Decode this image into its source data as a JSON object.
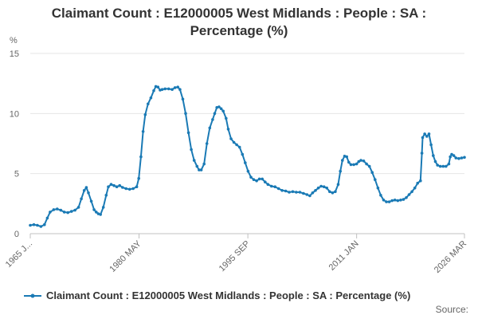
{
  "chart_data": {
    "type": "line",
    "title_line1": "Claimant Count : E12000005 West Midlands : People : SA :",
    "title_line2": "Percentage (%)",
    "y_unit": "%",
    "ylim": [
      0,
      15
    ],
    "yticks": [
      "0",
      "5",
      "10",
      "15"
    ],
    "xlim": [
      1965.0,
      2026.2
    ],
    "xticks": [
      {
        "label": "1965 J...",
        "x": 1965.0
      },
      {
        "label": "1980 MAY",
        "x": 1980.33
      },
      {
        "label": "1995 SEP",
        "x": 1995.67
      },
      {
        "label": "2011 JAN",
        "x": 2011.0
      },
      {
        "label": "2026 MAR",
        "x": 2026.2
      }
    ],
    "grid": "horizontal",
    "legend_position": "bottom",
    "series": [
      {
        "name": "Claimant Count : E12000005 West Midlands : People : SA : Percentage (%)",
        "color": "#1a7ab5",
        "points": [
          [
            1965.0,
            0.7
          ],
          [
            1965.5,
            0.75
          ],
          [
            1966.0,
            0.7
          ],
          [
            1966.5,
            0.6
          ],
          [
            1967.0,
            0.75
          ],
          [
            1967.4,
            1.3
          ],
          [
            1967.8,
            1.8
          ],
          [
            1968.3,
            2.0
          ],
          [
            1968.8,
            2.05
          ],
          [
            1969.3,
            1.95
          ],
          [
            1969.8,
            1.8
          ],
          [
            1970.3,
            1.75
          ],
          [
            1970.8,
            1.85
          ],
          [
            1971.3,
            1.95
          ],
          [
            1971.8,
            2.2
          ],
          [
            1972.2,
            2.9
          ],
          [
            1972.6,
            3.6
          ],
          [
            1972.9,
            3.85
          ],
          [
            1973.2,
            3.4
          ],
          [
            1973.6,
            2.7
          ],
          [
            1974.0,
            2.0
          ],
          [
            1974.3,
            1.8
          ],
          [
            1974.6,
            1.65
          ],
          [
            1974.9,
            1.6
          ],
          [
            1975.3,
            2.2
          ],
          [
            1975.7,
            3.2
          ],
          [
            1976.0,
            3.9
          ],
          [
            1976.4,
            4.1
          ],
          [
            1976.8,
            4.0
          ],
          [
            1977.2,
            3.9
          ],
          [
            1977.6,
            4.0
          ],
          [
            1978.0,
            3.85
          ],
          [
            1978.5,
            3.75
          ],
          [
            1979.0,
            3.7
          ],
          [
            1979.5,
            3.75
          ],
          [
            1980.0,
            3.9
          ],
          [
            1980.3,
            4.6
          ],
          [
            1980.6,
            6.4
          ],
          [
            1980.9,
            8.5
          ],
          [
            1981.2,
            9.9
          ],
          [
            1981.6,
            10.8
          ],
          [
            1982.0,
            11.3
          ],
          [
            1982.4,
            11.9
          ],
          [
            1982.7,
            12.25
          ],
          [
            1983.0,
            12.2
          ],
          [
            1983.3,
            11.95
          ],
          [
            1983.6,
            12.0
          ],
          [
            1984.0,
            12.05
          ],
          [
            1984.5,
            12.05
          ],
          [
            1985.0,
            12.0
          ],
          [
            1985.4,
            12.15
          ],
          [
            1985.8,
            12.2
          ],
          [
            1986.1,
            12.0
          ],
          [
            1986.5,
            11.2
          ],
          [
            1986.9,
            10.0
          ],
          [
            1987.3,
            8.4
          ],
          [
            1987.7,
            7.0
          ],
          [
            1988.1,
            6.1
          ],
          [
            1988.5,
            5.6
          ],
          [
            1988.8,
            5.3
          ],
          [
            1989.1,
            5.3
          ],
          [
            1989.5,
            5.8
          ],
          [
            1989.9,
            7.5
          ],
          [
            1990.3,
            8.8
          ],
          [
            1990.7,
            9.5
          ],
          [
            1991.0,
            10.0
          ],
          [
            1991.3,
            10.5
          ],
          [
            1991.6,
            10.55
          ],
          [
            1991.9,
            10.4
          ],
          [
            1992.2,
            10.2
          ],
          [
            1992.6,
            9.6
          ],
          [
            1992.9,
            8.7
          ],
          [
            1993.3,
            7.9
          ],
          [
            1993.7,
            7.6
          ],
          [
            1994.1,
            7.4
          ],
          [
            1994.5,
            7.2
          ],
          [
            1994.9,
            6.6
          ],
          [
            1995.3,
            5.9
          ],
          [
            1995.7,
            5.2
          ],
          [
            1996.1,
            4.7
          ],
          [
            1996.5,
            4.5
          ],
          [
            1996.9,
            4.4
          ],
          [
            1997.3,
            4.55
          ],
          [
            1997.7,
            4.55
          ],
          [
            1998.1,
            4.3
          ],
          [
            1998.5,
            4.1
          ],
          [
            1999.0,
            3.95
          ],
          [
            1999.5,
            3.9
          ],
          [
            2000.0,
            3.75
          ],
          [
            2000.5,
            3.6
          ],
          [
            2001.0,
            3.55
          ],
          [
            2001.5,
            3.45
          ],
          [
            2002.0,
            3.5
          ],
          [
            2002.5,
            3.45
          ],
          [
            2003.0,
            3.45
          ],
          [
            2003.5,
            3.35
          ],
          [
            2004.0,
            3.25
          ],
          [
            2004.4,
            3.15
          ],
          [
            2004.8,
            3.4
          ],
          [
            2005.2,
            3.6
          ],
          [
            2005.6,
            3.8
          ],
          [
            2006.0,
            3.95
          ],
          [
            2006.4,
            3.9
          ],
          [
            2006.8,
            3.8
          ],
          [
            2007.2,
            3.5
          ],
          [
            2007.6,
            3.4
          ],
          [
            2008.0,
            3.5
          ],
          [
            2008.4,
            4.1
          ],
          [
            2008.7,
            5.2
          ],
          [
            2009.0,
            6.1
          ],
          [
            2009.3,
            6.45
          ],
          [
            2009.6,
            6.4
          ],
          [
            2009.9,
            5.95
          ],
          [
            2010.2,
            5.75
          ],
          [
            2010.6,
            5.75
          ],
          [
            2011.0,
            5.8
          ],
          [
            2011.3,
            6.0
          ],
          [
            2011.6,
            6.1
          ],
          [
            2012.0,
            6.05
          ],
          [
            2012.4,
            5.8
          ],
          [
            2012.8,
            5.6
          ],
          [
            2013.2,
            5.1
          ],
          [
            2013.6,
            4.5
          ],
          [
            2014.0,
            3.8
          ],
          [
            2014.4,
            3.2
          ],
          [
            2014.8,
            2.8
          ],
          [
            2015.2,
            2.65
          ],
          [
            2015.6,
            2.65
          ],
          [
            2016.0,
            2.75
          ],
          [
            2016.4,
            2.8
          ],
          [
            2016.8,
            2.75
          ],
          [
            2017.2,
            2.8
          ],
          [
            2017.6,
            2.85
          ],
          [
            2018.0,
            3.0
          ],
          [
            2018.4,
            3.25
          ],
          [
            2018.8,
            3.5
          ],
          [
            2019.2,
            3.8
          ],
          [
            2019.6,
            4.2
          ],
          [
            2020.0,
            4.4
          ],
          [
            2020.2,
            6.7
          ],
          [
            2020.3,
            8.0
          ],
          [
            2020.6,
            8.3
          ],
          [
            2020.9,
            8.1
          ],
          [
            2021.2,
            8.3
          ],
          [
            2021.5,
            7.4
          ],
          [
            2021.8,
            6.5
          ],
          [
            2022.1,
            6.0
          ],
          [
            2022.4,
            5.7
          ],
          [
            2022.8,
            5.6
          ],
          [
            2023.2,
            5.6
          ],
          [
            2023.6,
            5.6
          ],
          [
            2024.0,
            5.8
          ],
          [
            2024.2,
            6.4
          ],
          [
            2024.4,
            6.6
          ],
          [
            2024.7,
            6.5
          ],
          [
            2025.0,
            6.3
          ],
          [
            2025.4,
            6.25
          ],
          [
            2025.8,
            6.3
          ],
          [
            2026.2,
            6.35
          ]
        ]
      }
    ],
    "source_label": "Source:"
  }
}
